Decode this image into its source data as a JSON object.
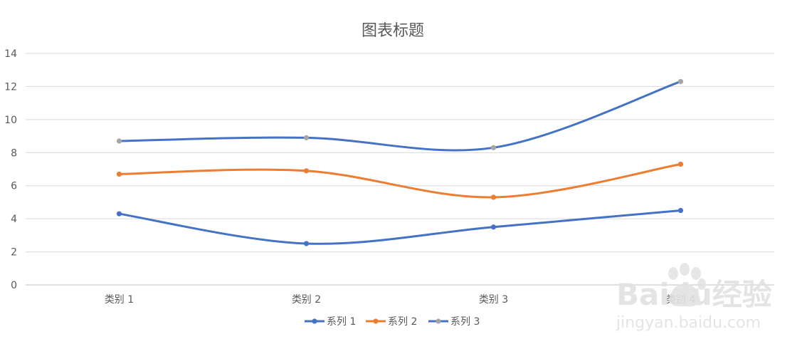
{
  "chart_data": {
    "type": "line",
    "title": "图表标题",
    "xlabel": "",
    "ylabel": "",
    "categories": [
      "类别 1",
      "类别 2",
      "类别 3",
      "类别 4"
    ],
    "ylim": [
      0,
      14
    ],
    "yticks": [
      0,
      2,
      4,
      6,
      8,
      10,
      12,
      14
    ],
    "grid": true,
    "smooth": true,
    "legend": "bottom",
    "series": [
      {
        "name": "系列 1",
        "values": [
          4.3,
          2.5,
          3.5,
          4.5
        ],
        "color": "#4472C4",
        "marker_color": "#4472C4"
      },
      {
        "name": "系列 2",
        "values": [
          6.7,
          6.9,
          5.3,
          7.3
        ],
        "color": "#ED7D31",
        "marker_color": "#ED7D31"
      },
      {
        "name": "系列 3",
        "values": [
          8.7,
          8.9,
          8.3,
          12.3
        ],
        "color": "#4472C4",
        "marker_color": "#A5A5A5"
      }
    ]
  },
  "watermark": {
    "brand": "Baidu经验",
    "url": "jingyan.baidu.com"
  }
}
